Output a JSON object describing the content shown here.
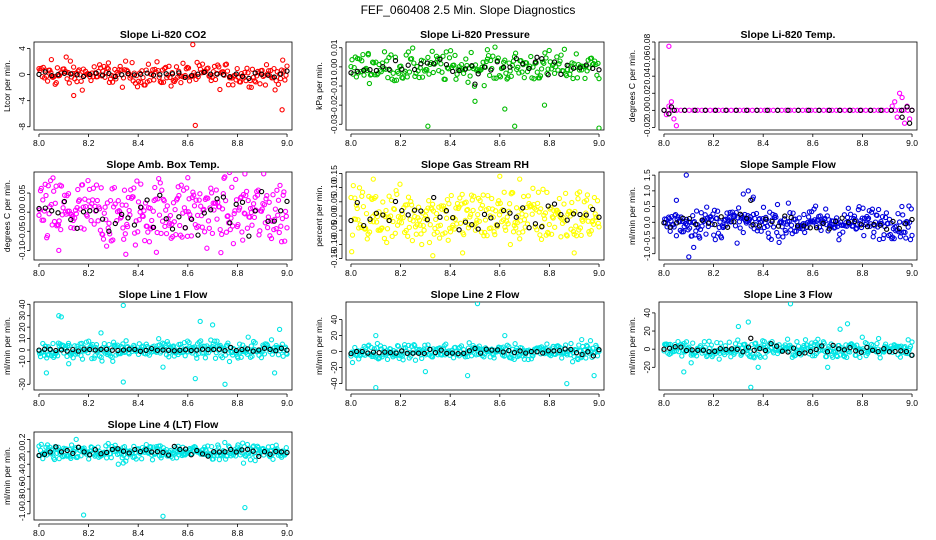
{
  "title": "FEF_060408  2.5 Min. Slope Diagnostics",
  "chart_data": [
    {
      "type": "scatter",
      "title": "Slope Li-820 CO2",
      "ylabel": "Ltcor per min.",
      "xlim": [
        7.98,
        9.02
      ],
      "ylim": [
        -8.5,
        5
      ],
      "xticks": [
        8.0,
        8.2,
        8.4,
        8.6,
        8.8,
        9.0
      ],
      "xtick_labels": [
        "8.0",
        "8.2",
        "8.4",
        "8.6",
        "8.8",
        "9.0"
      ],
      "yticks": [
        -8,
        -4,
        0,
        4
      ],
      "ytick_labels": [
        "-8",
        "-4",
        "0",
        "4"
      ],
      "series": [
        {
          "color": "#ff0000",
          "spread": 0.9,
          "n": 230,
          "outliers": [
            [
              8.14,
              -3.2
            ],
            [
              8.62,
              4.6
            ],
            [
              8.63,
              -7.8
            ],
            [
              8.98,
              -5.4
            ],
            [
              8.28,
              1.8
            ],
            [
              8.11,
              2.7
            ],
            [
              8.05,
              2.3
            ]
          ]
        },
        {
          "color": "#000000",
          "spread": 0.25,
          "n": 40,
          "outliers": []
        }
      ]
    },
    {
      "type": "scatter",
      "title": "Slope Li-820 Pressure",
      "ylabel": "kPa per min.",
      "xlim": [
        7.98,
        9.02
      ],
      "ylim": [
        -0.033,
        0.013
      ],
      "xticks": [
        8.0,
        8.2,
        8.4,
        8.6,
        8.8,
        9.0
      ],
      "xtick_labels": [
        "8.0",
        "8.2",
        "8.4",
        "8.6",
        "8.8",
        "9.0"
      ],
      "yticks": [
        -0.03,
        -0.02,
        -0.01,
        0,
        0.01
      ],
      "ytick_labels": [
        "-0.03",
        "-0.02",
        "-0.01",
        "0.00",
        "0.01"
      ],
      "series": [
        {
          "color": "#00bb00",
          "spread": 0.004,
          "n": 230,
          "outliers": [
            [
              8.31,
              -0.031
            ],
            [
              8.66,
              -0.031
            ],
            [
              9.0,
              -0.032
            ],
            [
              8.78,
              -0.02
            ],
            [
              8.5,
              -0.018
            ],
            [
              8.62,
              -0.022
            ],
            [
              8.07,
              0.007
            ],
            [
              8.55,
              0.009
            ]
          ]
        },
        {
          "color": "#000000",
          "spread": 0.002,
          "n": 40,
          "outliers": [
            [
              8.5,
              -0.009
            ],
            [
              8.75,
              0.005
            ]
          ]
        }
      ]
    },
    {
      "type": "scatter",
      "title": "Slope Li-820 Temp.",
      "ylabel": "degrees C per min.",
      "xlim": [
        7.98,
        9.02
      ],
      "ylim": [
        -0.023,
        0.08
      ],
      "xticks": [
        8.0,
        8.2,
        8.4,
        8.6,
        8.8,
        9.0
      ],
      "xtick_labels": [
        "8.0",
        "8.2",
        "8.4",
        "8.6",
        "8.8",
        "9.0"
      ],
      "yticks": [
        -0.02,
        0,
        0.02,
        0.04,
        0.06,
        0.08
      ],
      "ytick_labels": [
        "-0.02",
        "0.00",
        "0.02",
        "0.04",
        "0.06",
        "0.08"
      ],
      "series": [
        {
          "color": "#ff00ff",
          "spread": 0.0,
          "n": 60,
          "outliers": [
            [
              8.02,
              0.075
            ],
            [
              8.02,
              0.005
            ],
            [
              8.03,
              0.01
            ],
            [
              8.01,
              -0.005
            ],
            [
              8.04,
              -0.01
            ],
            [
              8.05,
              -0.018
            ],
            [
              8.93,
              0.01
            ],
            [
              8.95,
              0.02
            ],
            [
              8.97,
              -0.015
            ],
            [
              8.98,
              0.005
            ],
            [
              8.94,
              -0.008
            ],
            [
              8.96,
              0.015
            ],
            [
              8.99,
              -0.01
            ],
            [
              8.92,
              0.005
            ]
          ]
        },
        {
          "color": "#000000",
          "spread": 0.0,
          "n": 25,
          "outliers": [
            [
              8.02,
              -0.004
            ],
            [
              8.03,
              0.004
            ],
            [
              8.96,
              -0.008
            ],
            [
              8.98,
              0.004
            ],
            [
              8.99,
              -0.015
            ]
          ]
        }
      ]
    },
    {
      "type": "scatter",
      "title": "Slope Amb. Box Temp.",
      "ylabel": "degrees C per min.",
      "xlim": [
        7.98,
        9.02
      ],
      "ylim": [
        -0.125,
        0.105
      ],
      "xticks": [
        8.0,
        8.2,
        8.4,
        8.6,
        8.8,
        9.0
      ],
      "xtick_labels": [
        "8.0",
        "8.2",
        "8.4",
        "8.6",
        "8.8",
        "9.0"
      ],
      "yticks": [
        -0.1,
        -0.05,
        0,
        0.05
      ],
      "ytick_labels": [
        "-0.10",
        "-0.05",
        "0.00",
        "0.05"
      ],
      "series": [
        {
          "color": "#ff00ff",
          "spread": 0.045,
          "n": 320,
          "outliers": [
            [
              8.35,
              -0.11
            ],
            [
              8.83,
              0.1
            ],
            [
              8.08,
              -0.1
            ],
            [
              8.6,
              0.09
            ]
          ]
        },
        {
          "color": "#000000",
          "spread": 0.025,
          "n": 40,
          "outliers": []
        }
      ]
    },
    {
      "type": "scatter",
      "title": "Slope Gas Stream RH",
      "ylabel": "percent per min.",
      "xlim": [
        7.98,
        9.02
      ],
      "ylim": [
        -0.155,
        0.155
      ],
      "xticks": [
        8.0,
        8.2,
        8.4,
        8.6,
        8.8,
        9.0
      ],
      "xtick_labels": [
        "8.0",
        "8.2",
        "8.4",
        "8.6",
        "8.8",
        "9.0"
      ],
      "yticks": [
        -0.15,
        -0.1,
        -0.05,
        0,
        0.05,
        0.1,
        0.15
      ],
      "ytick_labels": [
        "-0.15",
        "-0.10",
        "-0.05",
        "0.00",
        "0.05",
        "0.10",
        "0.15"
      ],
      "series": [
        {
          "color": "#ffff00",
          "spread": 0.05,
          "n": 320,
          "outliers": [
            [
              8.33,
              -0.14
            ],
            [
              8.09,
              0.13
            ],
            [
              8.6,
              0.14
            ],
            [
              8.45,
              -0.13
            ],
            [
              8.9,
              -0.13
            ],
            [
              8.68,
              0.13
            ]
          ]
        },
        {
          "color": "#000000",
          "spread": 0.025,
          "n": 40,
          "outliers": []
        }
      ]
    },
    {
      "type": "scatter",
      "title": "Slope Sample Flow",
      "ylabel": "ml/min per min.",
      "xlim": [
        7.98,
        9.02
      ],
      "ylim": [
        -1.2,
        1.6
      ],
      "xticks": [
        8.0,
        8.2,
        8.4,
        8.6,
        8.8,
        9.0
      ],
      "xtick_labels": [
        "8.0",
        "8.2",
        "8.4",
        "8.6",
        "8.8",
        "9.0"
      ],
      "yticks": [
        -1.0,
        -0.5,
        0,
        0.5,
        1.0,
        1.5
      ],
      "ytick_labels": [
        "-1.0",
        "-0.5",
        "0.0",
        "0.5",
        "1.0",
        "1.5"
      ],
      "series": [
        {
          "color": "#0000dd",
          "spread": 0.25,
          "n": 320,
          "outliers": [
            [
              8.09,
              1.5
            ],
            [
              8.05,
              0.7
            ],
            [
              8.34,
              1.0
            ],
            [
              8.12,
              -0.8
            ],
            [
              8.1,
              -1.1
            ],
            [
              8.32,
              0.9
            ],
            [
              8.36,
              0.8
            ]
          ]
        },
        {
          "color": "#000000",
          "spread": 0.12,
          "n": 40,
          "outliers": [
            [
              8.35,
              0.7
            ]
          ]
        }
      ]
    },
    {
      "type": "scatter",
      "title": "Slope Line 1 Flow",
      "ylabel": "ml/min per min.",
      "xlim": [
        7.98,
        9.02
      ],
      "ylim": [
        -35,
        42
      ],
      "xticks": [
        8.0,
        8.2,
        8.4,
        8.6,
        8.8,
        9.0
      ],
      "xtick_labels": [
        "8.0",
        "8.2",
        "8.4",
        "8.6",
        "8.8",
        "9.0"
      ],
      "yticks": [
        -30,
        -10,
        0,
        10,
        20,
        30,
        40
      ],
      "ytick_labels": [
        "-30",
        "-10",
        "0",
        "10",
        "20",
        "30",
        "40"
      ],
      "series": [
        {
          "color": "#00e5e5",
          "spread": 4,
          "n": 320,
          "outliers": [
            [
              8.08,
              30
            ],
            [
              8.09,
              29
            ],
            [
              8.34,
              39
            ],
            [
              8.34,
              -28
            ],
            [
              8.65,
              25
            ],
            [
              8.7,
              22
            ],
            [
              8.75,
              -30
            ],
            [
              8.63,
              -25
            ],
            [
              8.95,
              -20
            ],
            [
              8.97,
              18
            ],
            [
              8.25,
              15
            ],
            [
              8.5,
              -15
            ],
            [
              8.12,
              -12
            ],
            [
              8.03,
              -20
            ]
          ]
        },
        {
          "color": "#000000",
          "spread": 0.8,
          "n": 45,
          "outliers": []
        }
      ]
    },
    {
      "type": "scatter",
      "title": "Slope Line 2 Flow",
      "ylabel": "ml/min per min.",
      "xlim": [
        7.98,
        9.02
      ],
      "ylim": [
        -48,
        62
      ],
      "xticks": [
        8.0,
        8.2,
        8.4,
        8.6,
        8.8,
        9.0
      ],
      "xtick_labels": [
        "8.0",
        "8.2",
        "8.4",
        "8.6",
        "8.8",
        "9.0"
      ],
      "yticks": [
        -40,
        -20,
        0,
        20,
        40
      ],
      "ytick_labels": [
        "-40",
        "-20",
        "0",
        "20",
        "40"
      ],
      "series": [
        {
          "color": "#00e5e5",
          "spread": 5,
          "n": 320,
          "outliers": [
            [
              8.1,
              -45
            ],
            [
              8.51,
              60
            ],
            [
              8.87,
              -40
            ],
            [
              8.47,
              -30
            ],
            [
              8.62,
              20
            ],
            [
              8.1,
              20
            ],
            [
              8.3,
              -25
            ],
            [
              8.98,
              -30
            ],
            [
              8.93,
              15
            ]
          ]
        },
        {
          "color": "#000000",
          "spread": 2.5,
          "n": 45,
          "outliers": []
        }
      ]
    },
    {
      "type": "scatter",
      "title": "Slope Line 3 Flow",
      "ylabel": "ml/min per min.",
      "xlim": [
        7.98,
        9.02
      ],
      "ylim": [
        -45,
        52
      ],
      "xticks": [
        8.0,
        8.2,
        8.4,
        8.6,
        8.8,
        9.0
      ],
      "xtick_labels": [
        "8.0",
        "8.2",
        "8.4",
        "8.6",
        "8.8",
        "9.0"
      ],
      "yticks": [
        -20,
        0,
        20,
        40
      ],
      "ytick_labels": [
        "-20",
        "0",
        "20",
        "40"
      ],
      "series": [
        {
          "color": "#00e5e5",
          "spread": 5,
          "n": 320,
          "outliers": [
            [
              8.35,
              -42
            ],
            [
              8.51,
              50
            ],
            [
              8.34,
              30
            ],
            [
              8.74,
              28
            ],
            [
              8.71,
              22
            ],
            [
              8.3,
              25
            ],
            [
              8.08,
              -25
            ],
            [
              8.11,
              -15
            ],
            [
              8.66,
              -20
            ],
            [
              8.38,
              -20
            ]
          ]
        },
        {
          "color": "#000000",
          "spread": 3,
          "n": 45,
          "outliers": [
            [
              8.35,
              12
            ]
          ]
        }
      ]
    },
    {
      "type": "scatter",
      "title": "Slope Line 4 (LT) Flow",
      "ylabel": "ml/min per min.",
      "xlim": [
        7.98,
        9.02
      ],
      "ylim": [
        -1.1,
        0.32
      ],
      "xticks": [
        8.0,
        8.2,
        8.4,
        8.6,
        8.8,
        9.0
      ],
      "xtick_labels": [
        "8.0",
        "8.2",
        "8.4",
        "8.6",
        "8.8",
        "9.0"
      ],
      "yticks": [
        -1.0,
        -0.8,
        -0.6,
        -0.4,
        -0.2,
        0,
        0.2
      ],
      "ytick_labels": [
        "-1.0",
        "-0.8",
        "-0.6",
        "-0.4",
        "-0.2",
        "0.0",
        "0.2"
      ],
      "series": [
        {
          "color": "#00e5e5",
          "spread": 0.06,
          "n": 320,
          "outliers": [
            [
              8.18,
              -1.02
            ],
            [
              8.5,
              -1.04
            ],
            [
              8.83,
              -0.9
            ],
            [
              8.32,
              -0.2
            ],
            [
              8.34,
              -0.18
            ],
            [
              8.35,
              -0.15
            ],
            [
              8.15,
              0.2
            ]
          ]
        },
        {
          "color": "#000000",
          "spread": 0.035,
          "n": 45,
          "outliers": []
        }
      ]
    }
  ]
}
